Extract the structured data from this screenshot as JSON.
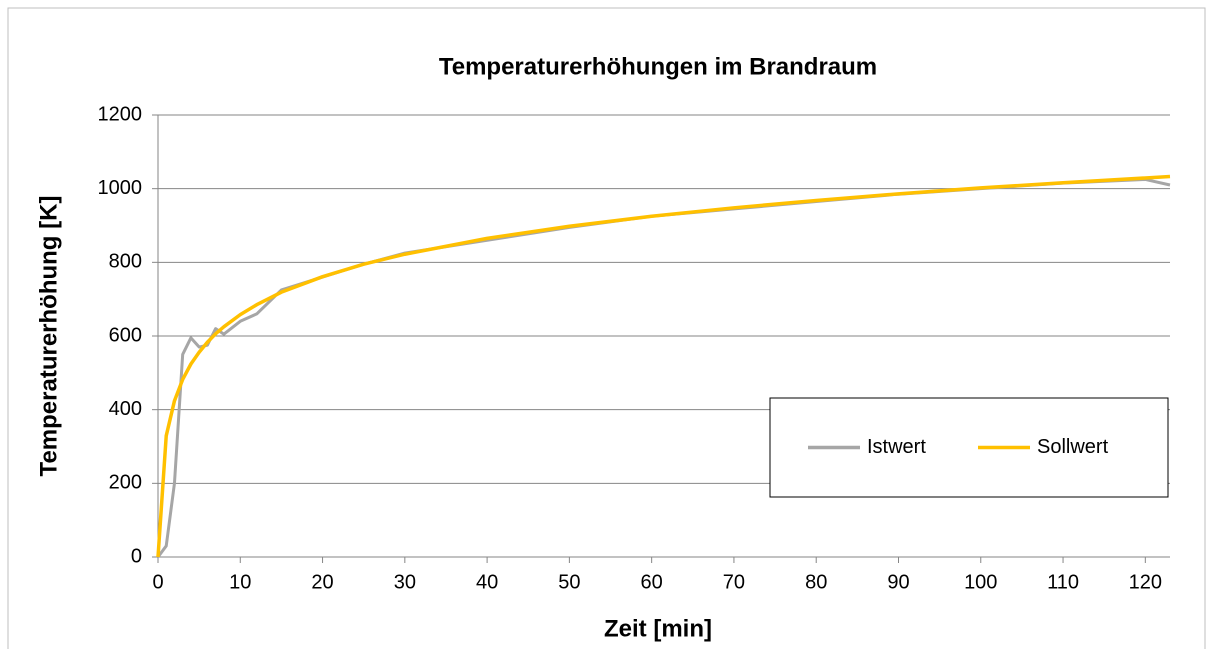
{
  "chart_data": {
    "type": "line",
    "title": "Temperaturerhöhungen im Brandraum",
    "xlabel": "Zeit [min]",
    "ylabel": "Temperaturerhöhung [K]",
    "x": [
      0,
      1,
      2,
      3,
      4,
      5,
      6,
      7,
      8,
      10,
      12,
      15,
      20,
      25,
      30,
      40,
      50,
      60,
      70,
      80,
      90,
      100,
      110,
      120,
      123
    ],
    "series": [
      {
        "name": "Istwert",
        "color": "#a6a6a6",
        "values": [
          0,
          30,
          200,
          550,
          595,
          570,
          575,
          620,
          605,
          640,
          660,
          725,
          760,
          795,
          825,
          860,
          895,
          925,
          945,
          965,
          985,
          1000,
          1015,
          1025,
          1010
        ]
      },
      {
        "name": "Sollwert",
        "color": "#ffc000",
        "values": [
          0,
          329,
          424,
          482,
          524,
          556,
          583,
          606,
          625,
          658,
          685,
          719,
          761,
          795,
          822,
          865,
          898,
          925,
          948,
          968,
          986,
          1002,
          1016,
          1029,
          1033
        ]
      }
    ],
    "xlim": [
      0,
      123
    ],
    "xticks": [
      0,
      10,
      20,
      30,
      40,
      50,
      60,
      70,
      80,
      90,
      100,
      110,
      120
    ],
    "ylim": [
      0,
      1200
    ],
    "yticks": [
      0,
      200,
      400,
      600,
      800,
      1000,
      1200
    ],
    "grid": true,
    "legend": "lower right"
  }
}
